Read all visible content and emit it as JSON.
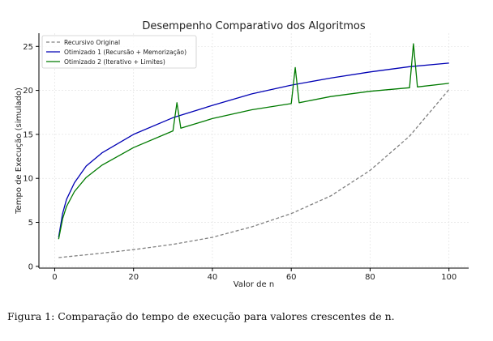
{
  "chart_data": {
    "type": "line",
    "title": "Desempenho Comparativo dos Algoritmos",
    "xlabel": "Valor de n",
    "ylabel": "Tempo de Execução (simulado)",
    "xlim": [
      -4,
      105
    ],
    "ylim": [
      -0.2,
      26.5
    ],
    "xticks": [
      0,
      20,
      40,
      60,
      80,
      100
    ],
    "yticks": [
      0,
      5,
      10,
      15,
      20,
      25
    ],
    "grid": true,
    "legend_position": "top-left",
    "series": [
      {
        "name": "Recursivo Original",
        "color": "#808080",
        "dash": "dashed",
        "x": [
          1,
          10,
          20,
          30,
          40,
          50,
          60,
          70,
          80,
          90,
          100
        ],
        "y": [
          1.0,
          1.4,
          1.9,
          2.5,
          3.3,
          4.5,
          6.0,
          8.0,
          10.9,
          14.8,
          20.1
        ]
      },
      {
        "name": "Otimizado 1 (Recursão + Memorização)",
        "color": "#0000b4",
        "dash": "solid",
        "x": [
          1,
          2,
          3,
          5,
          8,
          12,
          20,
          30,
          40,
          50,
          60,
          70,
          80,
          90,
          100
        ],
        "y": [
          3.3,
          6.0,
          7.6,
          9.5,
          11.4,
          12.9,
          15.0,
          16.9,
          18.3,
          19.6,
          20.6,
          21.4,
          22.1,
          22.7,
          23.1
        ]
      },
      {
        "name": "Otimizado 2 (Iterativo + Limites)",
        "color": "#007a00",
        "dash": "solid",
        "x": [
          1,
          2,
          3,
          5,
          8,
          12,
          20,
          30,
          31,
          32,
          40,
          50,
          60,
          61,
          62,
          70,
          80,
          90,
          91,
          92,
          100
        ],
        "y": [
          3.1,
          5.4,
          6.8,
          8.5,
          10.1,
          11.5,
          13.5,
          15.4,
          18.6,
          15.7,
          16.8,
          17.8,
          18.5,
          22.6,
          18.6,
          19.3,
          19.9,
          20.3,
          25.3,
          20.4,
          20.8
        ]
      }
    ]
  },
  "caption": "Figura 1: Comparação do tempo de execução para valores crescentes de n."
}
